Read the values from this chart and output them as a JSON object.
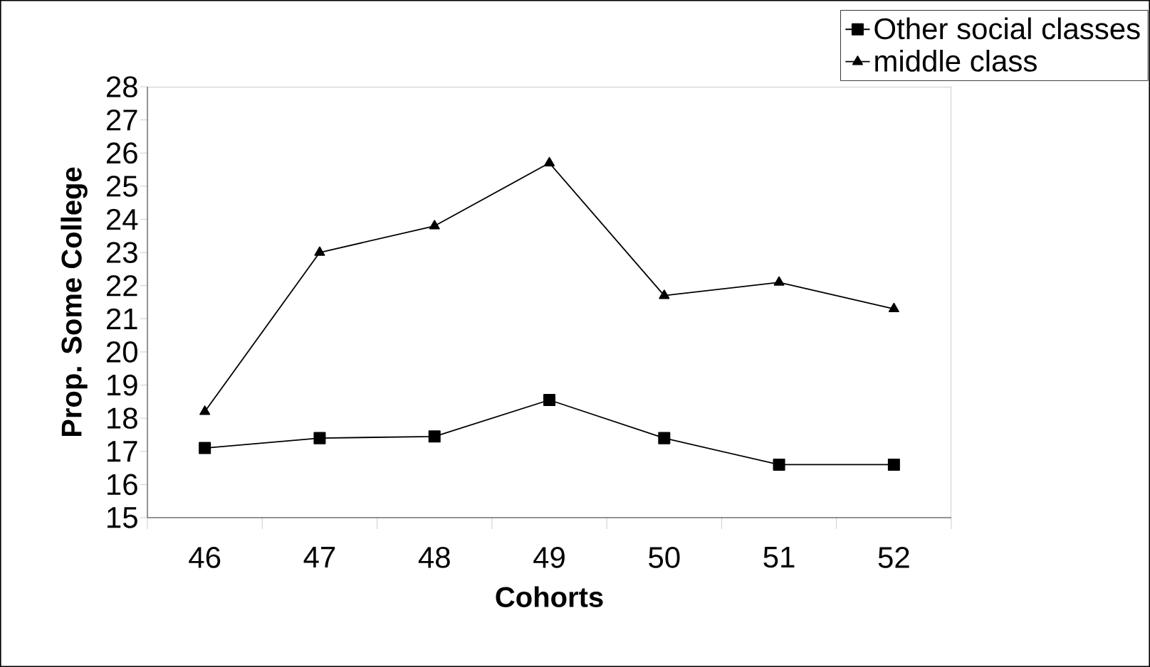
{
  "chart_data": {
    "type": "line",
    "xlabel": "Cohorts",
    "ylabel": "Prop. Some College",
    "categories": [
      "46",
      "47",
      "48",
      "49",
      "50",
      "51",
      "52"
    ],
    "ylim": [
      15,
      28
    ],
    "yticks": [
      15,
      16,
      17,
      18,
      19,
      20,
      21,
      22,
      23,
      24,
      25,
      26,
      27,
      28
    ],
    "legend": "top right",
    "series": [
      {
        "name": "Other social classes",
        "color": "#000000",
        "marker": "square",
        "values": [
          17.1,
          17.4,
          17.45,
          18.55,
          17.4,
          16.6,
          16.6
        ]
      },
      {
        "name": "middle class",
        "color": "#000000",
        "marker": "triangle",
        "values": [
          18.2,
          23.0,
          23.8,
          25.7,
          21.7,
          22.1,
          21.3
        ]
      }
    ]
  }
}
